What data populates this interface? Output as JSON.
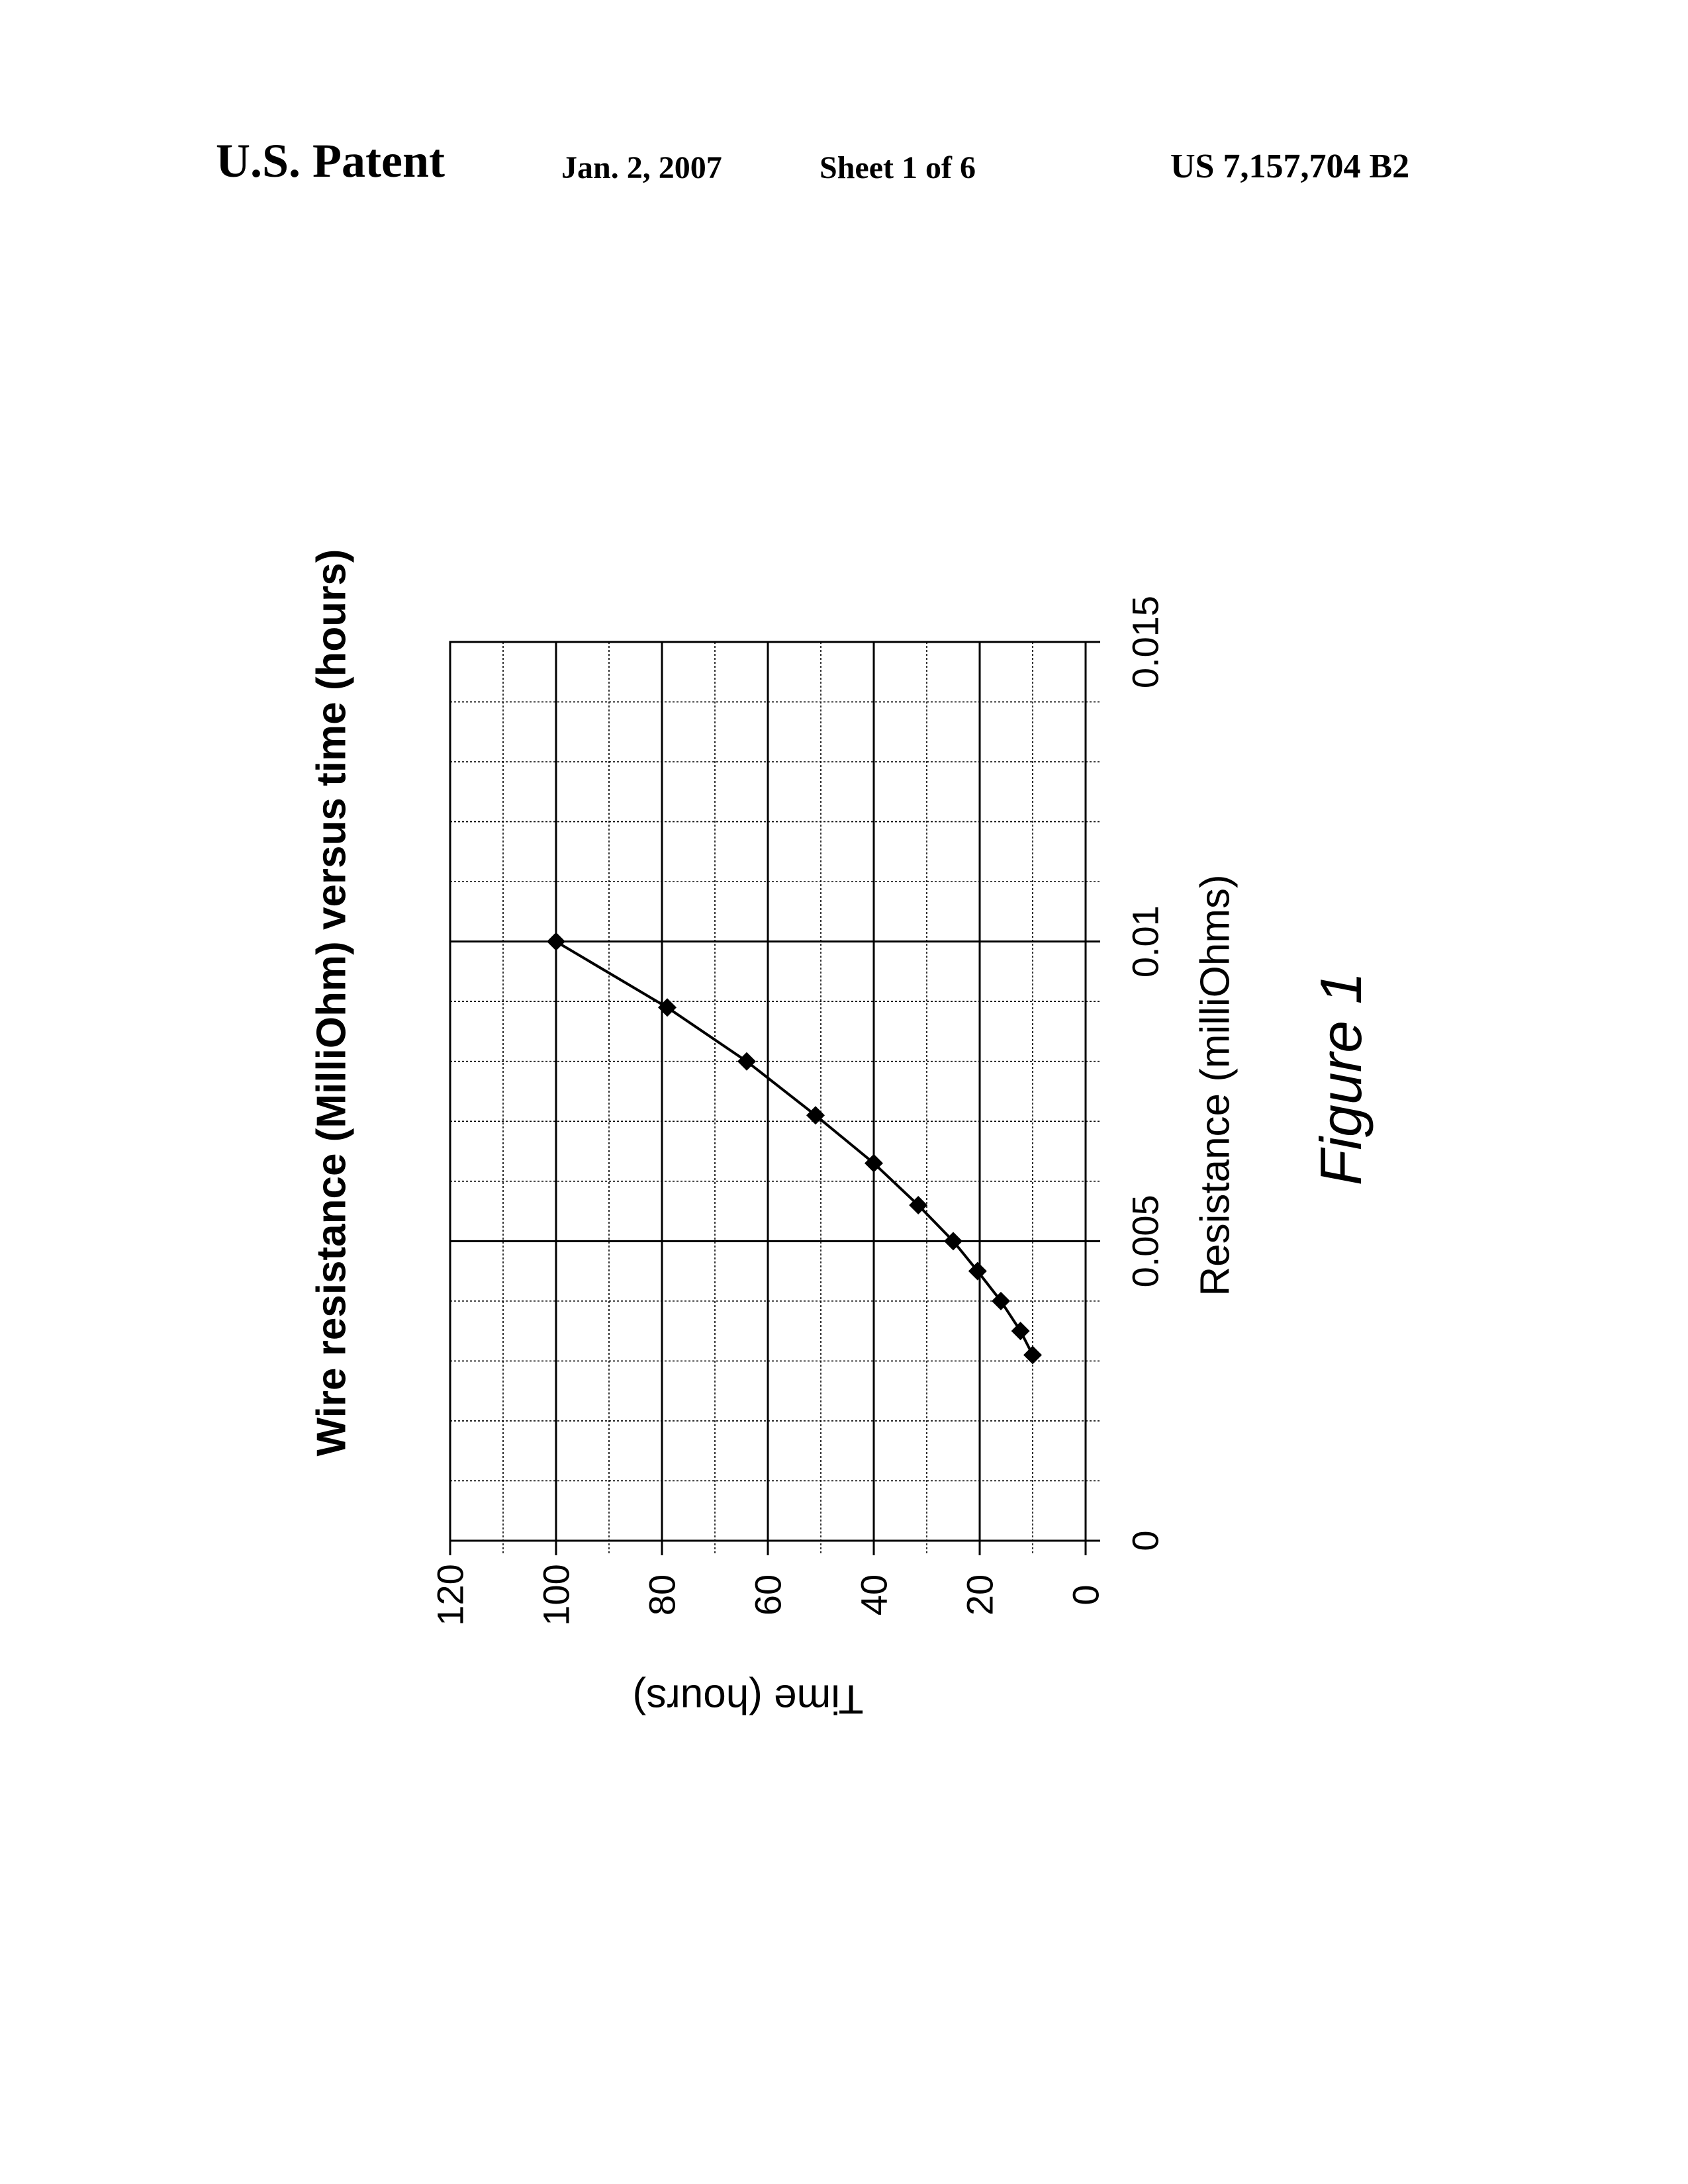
{
  "header": {
    "publication": "U.S. Patent",
    "date": "Jan. 2, 2007",
    "sheet": "Sheet 1 of 6",
    "patent_number": "US 7,157,704 B2"
  },
  "figure_label": "Figure 1",
  "chart_data": {
    "type": "line",
    "title": "Wire resistance (MilliOhm) versus time (hours)",
    "xlabel": "Resistance (milliOhms)",
    "ylabel": "Time (hours)",
    "xlim": [
      0,
      0.015
    ],
    "ylim": [
      0,
      120
    ],
    "x_ticks": [
      "0",
      "0.005",
      "0.01",
      "0.015"
    ],
    "y_ticks": [
      "0",
      "20",
      "40",
      "60",
      "80",
      "100",
      "120"
    ],
    "x_major_step": 0.005,
    "x_minor_step": 0.001,
    "y_major_step": 20,
    "y_minor_step": 10,
    "grid": true,
    "orientation": "page rotated 90° counter-clockwise",
    "line_color": "#000000",
    "marker": "diamond",
    "series": [
      {
        "x": [
          0.0031,
          0.0035,
          0.004,
          0.0045,
          0.005,
          0.0056,
          0.0063,
          0.0071,
          0.008,
          0.0089,
          0.01
        ],
        "y": [
          10,
          12.3,
          16,
          20.4,
          25,
          31.6,
          40,
          51,
          64,
          79,
          100
        ]
      }
    ]
  }
}
